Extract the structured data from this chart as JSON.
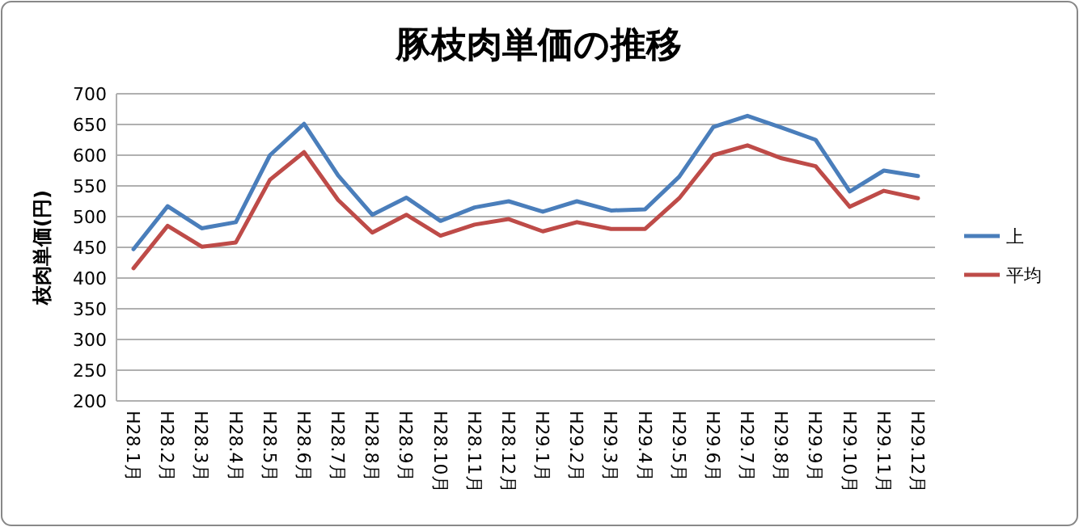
{
  "chart_data": {
    "type": "line",
    "title": "豚枝肉単価の推移",
    "ylabel": "枝肉単価(円)",
    "categories": [
      "H28.1月",
      "H28.2月",
      "H28.3月",
      "H28.4月",
      "H28.5月",
      "H28.6月",
      "H28.7月",
      "H28.8月",
      "H28.9月",
      "H28.10月",
      "H28.11月",
      "H28.12月",
      "H29.1月",
      "H29.2月",
      "H29.3月",
      "H29.4月",
      "H29.5月",
      "H29.6月",
      "H29.7月",
      "H29.8月",
      "H29.9月",
      "H29.10月",
      "H29.11月",
      "H29.12月"
    ],
    "series": [
      {
        "name": "上",
        "color": "#4a7ebb",
        "values": [
          447,
          517,
          481,
          491,
          600,
          651,
          567,
          503,
          531,
          493,
          515,
          525,
          508,
          525,
          510,
          512,
          565,
          646,
          664,
          645,
          625,
          541,
          575,
          566
        ]
      },
      {
        "name": "平均",
        "color": "#be4b48",
        "values": [
          416,
          485,
          451,
          458,
          560,
          605,
          527,
          474,
          503,
          469,
          487,
          496,
          476,
          491,
          480,
          480,
          530,
          600,
          616,
          595,
          582,
          516,
          542,
          530
        ]
      }
    ],
    "ylim": [
      200,
      700
    ],
    "yticks": [
      200,
      250,
      300,
      350,
      400,
      450,
      500,
      550,
      600,
      650,
      700
    ],
    "grid": "y",
    "legend": "right",
    "marker": "none",
    "line_style": "solid"
  }
}
